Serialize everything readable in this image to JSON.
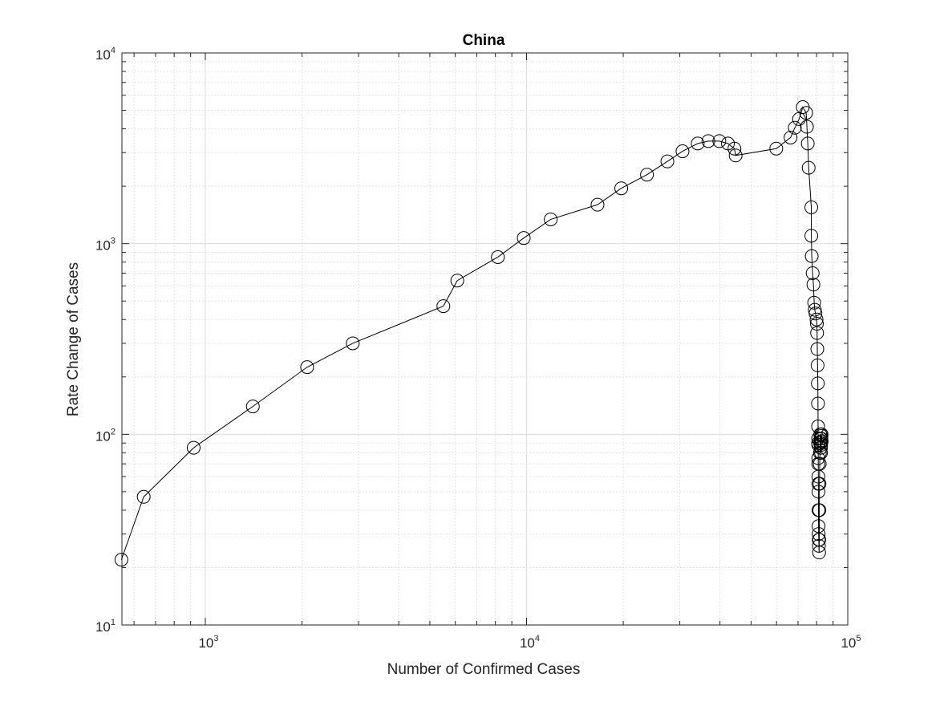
{
  "chart_data": {
    "type": "scatter",
    "title": "China",
    "xlabel": "Number of Confirmed Cases",
    "ylabel": "Rate Change of Cases",
    "xscale": "log",
    "yscale": "log",
    "xlim": [
      550,
      100000
    ],
    "ylim": [
      10,
      10000
    ],
    "x_tick_labels": [
      {
        "base": "10",
        "exp": "3"
      },
      {
        "base": "10",
        "exp": "4"
      },
      {
        "base": "10",
        "exp": "5"
      }
    ],
    "y_tick_labels": [
      {
        "base": "10",
        "exp": "1"
      },
      {
        "base": "10",
        "exp": "2"
      },
      {
        "base": "10",
        "exp": "3"
      },
      {
        "base": "10",
        "exp": "4"
      }
    ],
    "grid": true,
    "minor_grid": true,
    "marker": "open-circle",
    "line_color": "#000000",
    "series": [
      {
        "x": [
          548,
          643,
          920,
          1406,
          2075,
          2877,
          5509,
          6087,
          8141,
          9802,
          11891,
          16630,
          19716,
          23707,
          27440,
          30587,
          34110,
          36814,
          39829,
          42354,
          44386,
          44759,
          59895,
          66358,
          68413,
          70513,
          72434,
          74211,
          74619,
          75077,
          75550,
          77001,
          77022,
          77241,
          77754,
          78166,
          78600,
          78928,
          79356,
          79932,
          80136,
          80261,
          80386,
          80537,
          80690,
          80770,
          80823,
          80860,
          80887,
          80921,
          80932,
          80945,
          80977,
          81003,
          81033,
          81058,
          81102,
          81156,
          81250,
          81305,
          81435,
          81498,
          81591,
          81661,
          81782,
          81897,
          81999,
          82122,
          82198,
          82279,
          82361,
          82432,
          82511,
          82543,
          82602,
          82665,
          82718,
          82809,
          82883,
          82941
        ],
        "y": [
          22,
          47,
          85,
          140,
          225,
          300,
          470,
          640,
          850,
          1070,
          1340,
          1600,
          1950,
          2300,
          2700,
          3050,
          3350,
          3450,
          3450,
          3350,
          3150,
          2900,
          3150,
          3600,
          4050,
          4500,
          5200,
          4850,
          4100,
          3350,
          2500,
          1550,
          1100,
          860,
          700,
          610,
          490,
          450,
          430,
          400,
          380,
          340,
          280,
          230,
          185,
          145,
          110,
          95,
          90,
          88,
          75,
          70,
          60,
          55,
          50,
          40,
          33,
          30,
          28,
          26,
          24,
          28,
          40,
          55,
          70,
          80,
          90,
          100,
          100,
          95,
          85,
          90,
          85,
          80,
          88,
          92,
          95,
          98,
          100,
          92
        ]
      }
    ]
  }
}
